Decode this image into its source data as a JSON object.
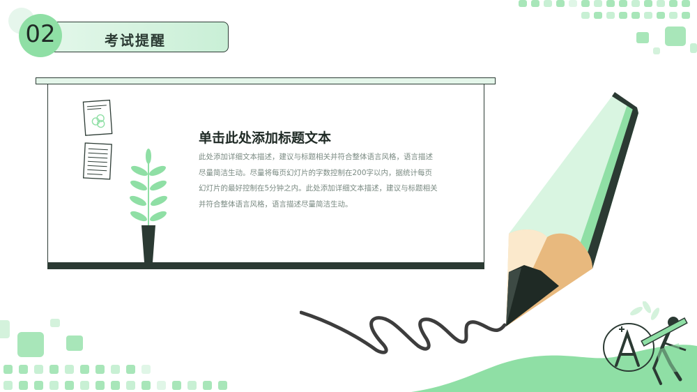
{
  "header": {
    "number": "02",
    "title": "考试提醒"
  },
  "content": {
    "title": "单击此处添加标题文本",
    "body": "此处添加详细文本描述，建议与标题相关并符合整体语言风格，语言描述尽量简洁生动。尽量将每页幻灯片的字数控制在200字以内，据统计每页幻灯片的最好控制在5分钟之内。此处添加详细文本描述，建议与标题相关并符合整体语言风格，语言描述尽量简洁生动。"
  },
  "colors": {
    "accent_green": "#8fdfa5",
    "light_green": "#d7f3df",
    "dark": "#2b3a33"
  },
  "icons": [
    "document-icon",
    "notes-icon",
    "plant-icon",
    "pencil-icon",
    "grade-a-icon"
  ]
}
